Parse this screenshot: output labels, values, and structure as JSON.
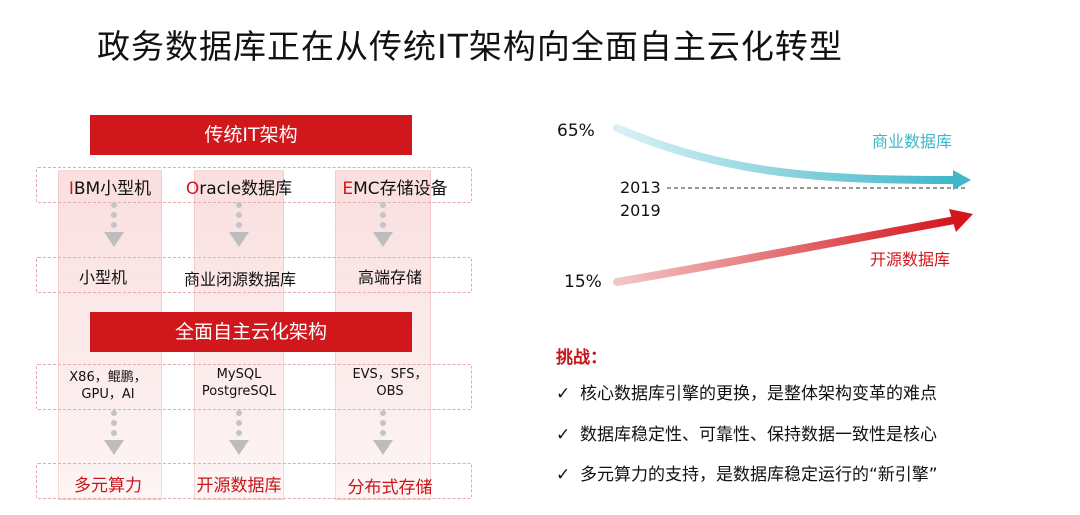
{
  "title": "政务数据库正在从传统IT架构向全面自主云化转型",
  "left": {
    "legacy_header": "传统IT架构",
    "cloud_header": "全面自主云化架构",
    "legacy_vendors": [
      {
        "initial": "I",
        "rest": "BM小型机"
      },
      {
        "initial": "O",
        "rest": "racle数据库"
      },
      {
        "initial": "E",
        "rest": "MC存储设备"
      }
    ],
    "legacy_outputs": [
      "小型机",
      "商业闭源数据库",
      "高端存储"
    ],
    "cloud_inputs": [
      {
        "line1": "X86，鲲鹏，",
        "line2": "GPU，AI"
      },
      {
        "line1": "MySQL",
        "line2": "PostgreSQL"
      },
      {
        "line1": "EVS，SFS，",
        "line2": "OBS"
      }
    ],
    "cloud_outputs": [
      "多元算力",
      "开源数据库",
      "分布式存储"
    ]
  },
  "chart_data": {
    "type": "line",
    "x": [
      "2013",
      "2019"
    ],
    "series": [
      {
        "name": "商业数据库",
        "values": [
          65,
          null
        ]
      },
      {
        "name": "开源数据库",
        "values": [
          15,
          null
        ]
      }
    ],
    "labels": {
      "commercial_pct": "65%",
      "open_pct": "15%",
      "year_start": "2013",
      "year_end": "2019"
    },
    "colors": {
      "commercial": "#3fb6c9",
      "open": "#d3151c"
    }
  },
  "challenges": {
    "heading": "挑战：",
    "check": "✓",
    "items": [
      "核心数据库引擎的更换，是整体架构变革的难点",
      "数据库稳定性、可靠性、保持数据一致性是核心",
      "多元算力的支持，是数据库稳定运行的“新引擎”"
    ]
  }
}
